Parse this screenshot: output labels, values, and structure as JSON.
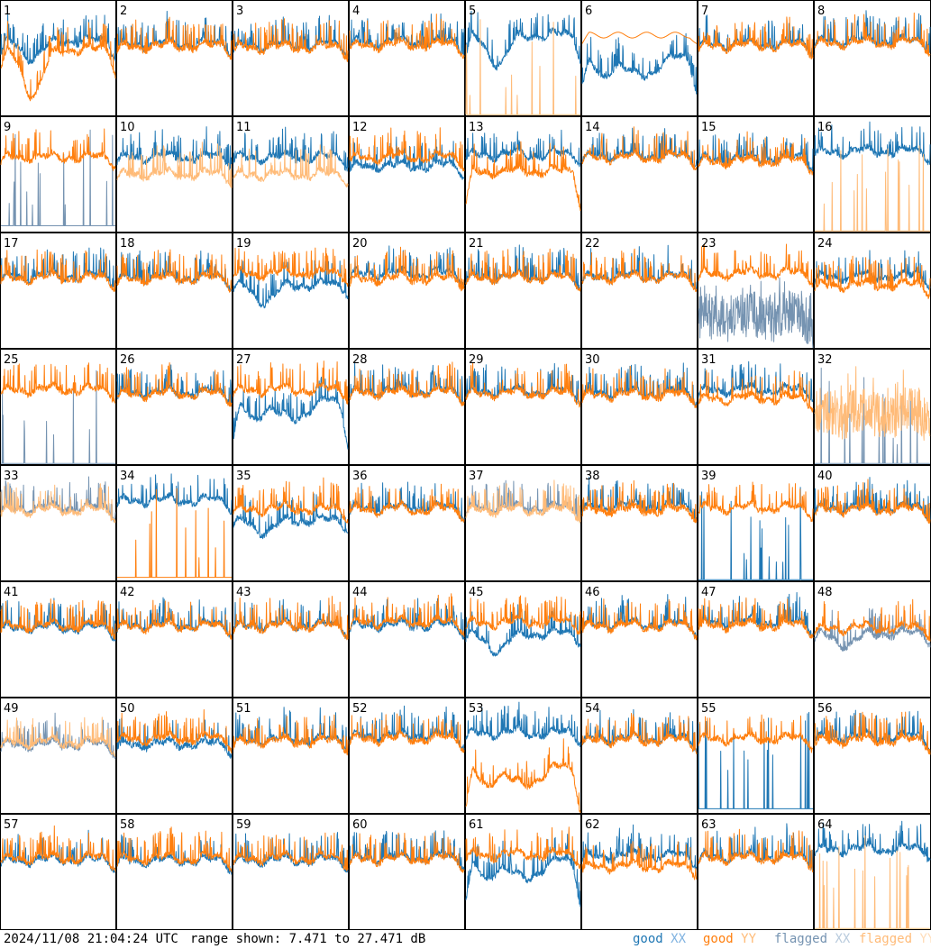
{
  "footer": {
    "timestamp": "2024/11/08 21:04:24 UTC",
    "range_text": "range shown: 7.471 to 27.471 dB"
  },
  "legend": [
    {
      "prefix": "good",
      "pol": "XX",
      "color": "#1f77b4",
      "pol_color": "#7fb2e0"
    },
    {
      "prefix": "good",
      "pol": "YY",
      "color": "#ff7f0e",
      "pol_color": "#ffbb78"
    },
    {
      "prefix": "flagged",
      "pol": "XX",
      "color": "#7593b1",
      "pol_color": "#b9cbdd"
    },
    {
      "prefix": "flagged",
      "pol": "YY",
      "color": "#ffbb78",
      "pol_color": "#ffdcb8"
    }
  ],
  "colors": {
    "good_xx": "#1f77b4",
    "good_yy": "#ff7f0e",
    "flagged_xx": "#7593b1",
    "flagged_yy": "#ffbb78",
    "frame": "#000000"
  },
  "chart_data": {
    "type": "line",
    "title": "",
    "unit": "dB",
    "ylim": [
      7.471,
      27.471
    ],
    "grid": false,
    "panels": [
      {
        "id": "1",
        "xx": {
          "s": "good",
          "level": 20.5,
          "shape": "dip",
          "depth": 3,
          "ex": 3
        },
        "yy": {
          "s": "good",
          "level": 19,
          "shape": "dip",
          "depth": 8,
          "ex": 4
        }
      },
      {
        "id": "2",
        "xx": {
          "s": "good",
          "level": 20,
          "shape": "ripple"
        },
        "yy": {
          "s": "good",
          "level": 19.6,
          "shape": "ripple"
        }
      },
      {
        "id": "3",
        "xx": {
          "s": "good",
          "level": 19.8,
          "shape": "ripple"
        },
        "yy": {
          "s": "good",
          "level": 19.4,
          "shape": "ripple"
        }
      },
      {
        "id": "4",
        "xx": {
          "s": "good",
          "level": 20.3,
          "shape": "ripple"
        },
        "yy": {
          "s": "good",
          "level": 19.8,
          "shape": "ripple"
        }
      },
      {
        "id": "5",
        "xx": {
          "s": "good",
          "level": 21.5,
          "shape": "dip",
          "depth": 5,
          "ex": 4
        },
        "yy": {
          "s": "flagged",
          "level": 7.6,
          "shape": "spikes"
        }
      },
      {
        "id": "6",
        "xx": {
          "s": "good",
          "level": 16,
          "shape": "wavy",
          "ex": 4
        },
        "yy": {
          "s": "good",
          "level": 21.5,
          "shape": "flatter"
        }
      },
      {
        "id": "7",
        "xx": {
          "s": "good",
          "level": 20,
          "shape": "ripple"
        },
        "yy": {
          "s": "good",
          "level": 19.7,
          "shape": "ripple"
        }
      },
      {
        "id": "8",
        "xx": {
          "s": "good",
          "level": 20.5,
          "shape": "edge"
        },
        "yy": {
          "s": "good",
          "level": 20.2,
          "shape": "edge"
        }
      },
      {
        "id": "9",
        "xx": {
          "s": "flagged",
          "level": 8.5,
          "shape": "spikes"
        },
        "yy": {
          "s": "good",
          "level": 20.5,
          "shape": "ripple"
        }
      },
      {
        "id": "10",
        "xx": {
          "s": "good",
          "level": 20.5,
          "shape": "ripple"
        },
        "yy": {
          "s": "flagged",
          "level": 17.5,
          "shape": "ripple"
        }
      },
      {
        "id": "11",
        "xx": {
          "s": "good",
          "level": 20.5,
          "shape": "ripple"
        },
        "yy": {
          "s": "flagged",
          "level": 17.5,
          "shape": "ripple"
        }
      },
      {
        "id": "12",
        "xx": {
          "s": "good",
          "level": 19,
          "shape": "ripple"
        },
        "yy": {
          "s": "good",
          "level": 20.5,
          "shape": "ripple"
        }
      },
      {
        "id": "13",
        "xx": {
          "s": "good",
          "level": 21,
          "shape": "ripple"
        },
        "yy": {
          "s": "good",
          "level": 18,
          "shape": "edge",
          "ex": 6
        }
      },
      {
        "id": "14",
        "xx": {
          "s": "good",
          "level": 20.8,
          "shape": "ripple"
        },
        "yy": {
          "s": "good",
          "level": 20.5,
          "shape": "ripple"
        }
      },
      {
        "id": "15",
        "xx": {
          "s": "good",
          "level": 20.3,
          "shape": "ripple"
        },
        "yy": {
          "s": "good",
          "level": 19.8,
          "shape": "ripple"
        }
      },
      {
        "id": "16",
        "xx": {
          "s": "good",
          "level": 21.5,
          "shape": "ripple"
        },
        "yy": {
          "s": "flagged",
          "level": 7.6,
          "shape": "spikes"
        }
      },
      {
        "id": "17",
        "xx": {
          "s": "good",
          "level": 20,
          "shape": "ripple"
        },
        "yy": {
          "s": "good",
          "level": 19.7,
          "shape": "ripple"
        }
      },
      {
        "id": "18",
        "xx": {
          "s": "good",
          "level": 19.8,
          "shape": "ripple"
        },
        "yy": {
          "s": "good",
          "level": 19.6,
          "shape": "ripple"
        }
      },
      {
        "id": "19",
        "xx": {
          "s": "good",
          "level": 18.5,
          "shape": "dip",
          "depth": 3
        },
        "yy": {
          "s": "good",
          "level": 20.5,
          "shape": "ripple"
        }
      },
      {
        "id": "20",
        "xx": {
          "s": "good",
          "level": 20.5,
          "shape": "ripple"
        },
        "yy": {
          "s": "good",
          "level": 19.6,
          "shape": "ripple"
        }
      },
      {
        "id": "21",
        "xx": {
          "s": "good",
          "level": 20,
          "shape": "ripple"
        },
        "yy": {
          "s": "good",
          "level": 19.8,
          "shape": "ripple"
        }
      },
      {
        "id": "22",
        "xx": {
          "s": "good",
          "level": 20,
          "shape": "ripple"
        },
        "yy": {
          "s": "good",
          "level": 19.8,
          "shape": "ripple"
        }
      },
      {
        "id": "23",
        "xx": {
          "s": "flagged",
          "level": 13,
          "shape": "noisy"
        },
        "yy": {
          "s": "good",
          "level": 20.5,
          "shape": "ripple"
        }
      },
      {
        "id": "24",
        "xx": {
          "s": "good",
          "level": 20,
          "shape": "ripple"
        },
        "yy": {
          "s": "good",
          "level": 18.5,
          "shape": "ripple"
        }
      },
      {
        "id": "25",
        "xx": {
          "s": "flagged",
          "level": 7.6,
          "shape": "spikes"
        },
        "yy": {
          "s": "good",
          "level": 20.5,
          "shape": "ripple"
        }
      },
      {
        "id": "26",
        "xx": {
          "s": "good",
          "level": 20,
          "shape": "ripple"
        },
        "yy": {
          "s": "good",
          "level": 19.8,
          "shape": "ripple"
        }
      },
      {
        "id": "27",
        "xx": {
          "s": "good",
          "level": 17,
          "shape": "wavy",
          "ex": 6
        },
        "yy": {
          "s": "good",
          "level": 20.5,
          "shape": "ripple"
        }
      },
      {
        "id": "28",
        "xx": {
          "s": "good",
          "level": 20.3,
          "shape": "ripple"
        },
        "yy": {
          "s": "good",
          "level": 20,
          "shape": "ripple"
        }
      },
      {
        "id": "29",
        "xx": {
          "s": "good",
          "level": 20.2,
          "shape": "ripple"
        },
        "yy": {
          "s": "good",
          "level": 19.9,
          "shape": "ripple"
        }
      },
      {
        "id": "30",
        "xx": {
          "s": "good",
          "level": 20,
          "shape": "ripple"
        },
        "yy": {
          "s": "good",
          "level": 19.6,
          "shape": "ripple"
        }
      },
      {
        "id": "31",
        "xx": {
          "s": "good",
          "level": 20.5,
          "shape": "ripple"
        },
        "yy": {
          "s": "good",
          "level": 19,
          "shape": "ripple"
        }
      },
      {
        "id": "32",
        "xx": {
          "s": "flagged",
          "level": 7.6,
          "shape": "spikes"
        },
        "yy": {
          "s": "flagged",
          "level": 16.5,
          "shape": "noisy"
        }
      },
      {
        "id": "33",
        "xx": {
          "s": "flagged",
          "level": 20.2,
          "shape": "ripple"
        },
        "yy": {
          "s": "flagged",
          "level": 19.8,
          "shape": "ripple"
        }
      },
      {
        "id": "34",
        "xx": {
          "s": "good",
          "level": 21.5,
          "shape": "ripple"
        },
        "yy": {
          "s": "good",
          "level": 8,
          "shape": "spikes"
        }
      },
      {
        "id": "35",
        "xx": {
          "s": "good",
          "level": 18,
          "shape": "dip",
          "depth": 2
        },
        "yy": {
          "s": "good",
          "level": 20,
          "shape": "ripple"
        }
      },
      {
        "id": "36",
        "xx": {
          "s": "good",
          "level": 20.2,
          "shape": "ripple"
        },
        "yy": {
          "s": "good",
          "level": 19.9,
          "shape": "ripple"
        }
      },
      {
        "id": "37",
        "xx": {
          "s": "flagged",
          "level": 20.2,
          "shape": "ripple"
        },
        "yy": {
          "s": "flagged",
          "level": 19.8,
          "shape": "ripple"
        }
      },
      {
        "id": "38",
        "xx": {
          "s": "good",
          "level": 20.5,
          "shape": "ripple"
        },
        "yy": {
          "s": "good",
          "level": 19.8,
          "shape": "ripple"
        }
      },
      {
        "id": "39",
        "xx": {
          "s": "good",
          "level": 7.6,
          "shape": "spikes"
        },
        "yy": {
          "s": "good",
          "level": 20.2,
          "shape": "ripple"
        }
      },
      {
        "id": "40",
        "xx": {
          "s": "good",
          "level": 20.2,
          "shape": "ripple"
        },
        "yy": {
          "s": "good",
          "level": 19.9,
          "shape": "ripple"
        }
      },
      {
        "id": "41",
        "xx": {
          "s": "good",
          "level": 19.6,
          "shape": "ripple"
        },
        "yy": {
          "s": "good",
          "level": 19.9,
          "shape": "ripple"
        }
      },
      {
        "id": "42",
        "xx": {
          "s": "good",
          "level": 20,
          "shape": "ripple"
        },
        "yy": {
          "s": "good",
          "level": 19.8,
          "shape": "ripple"
        }
      },
      {
        "id": "43",
        "xx": {
          "s": "good",
          "level": 20,
          "shape": "ripple"
        },
        "yy": {
          "s": "good",
          "level": 19.8,
          "shape": "ripple"
        }
      },
      {
        "id": "44",
        "xx": {
          "s": "good",
          "level": 20,
          "shape": "edge"
        },
        "yy": {
          "s": "good",
          "level": 20.5,
          "shape": "edge"
        }
      },
      {
        "id": "45",
        "xx": {
          "s": "good",
          "level": 18.5,
          "shape": "dip",
          "depth": 3
        },
        "yy": {
          "s": "good",
          "level": 20.5,
          "shape": "ripple"
        }
      },
      {
        "id": "46",
        "xx": {
          "s": "good",
          "level": 20.2,
          "shape": "ripple"
        },
        "yy": {
          "s": "good",
          "level": 19.9,
          "shape": "ripple"
        }
      },
      {
        "id": "47",
        "xx": {
          "s": "good",
          "level": 20.5,
          "shape": "edge"
        },
        "yy": {
          "s": "good",
          "level": 20,
          "shape": "edge"
        }
      },
      {
        "id": "48",
        "xx": {
          "s": "flagged",
          "level": 18.5,
          "shape": "dip",
          "depth": 2
        },
        "yy": {
          "s": "good",
          "level": 19.5,
          "shape": "ripple"
        }
      },
      {
        "id": "49",
        "xx": {
          "s": "flagged",
          "level": 19.5,
          "shape": "ripple"
        },
        "yy": {
          "s": "flagged",
          "level": 19.8,
          "shape": "ripple"
        }
      },
      {
        "id": "50",
        "xx": {
          "s": "good",
          "level": 19.5,
          "shape": "ripple"
        },
        "yy": {
          "s": "good",
          "level": 20.5,
          "shape": "ripple"
        }
      },
      {
        "id": "51",
        "xx": {
          "s": "good",
          "level": 20.3,
          "shape": "ripple"
        },
        "yy": {
          "s": "good",
          "level": 20,
          "shape": "ripple"
        }
      },
      {
        "id": "52",
        "xx": {
          "s": "good",
          "level": 21,
          "shape": "ripple"
        },
        "yy": {
          "s": "good",
          "level": 20.5,
          "shape": "edge"
        }
      },
      {
        "id": "53",
        "xx": {
          "s": "good",
          "level": 21.5,
          "shape": "ripple"
        },
        "yy": {
          "s": "good",
          "level": 14,
          "shape": "wavy",
          "ex": 6
        }
      },
      {
        "id": "54",
        "xx": {
          "s": "good",
          "level": 20.5,
          "shape": "ripple"
        },
        "yy": {
          "s": "good",
          "level": 20.2,
          "shape": "ripple"
        }
      },
      {
        "id": "55",
        "xx": {
          "s": "good",
          "level": 8.2,
          "shape": "spikes"
        },
        "yy": {
          "s": "good",
          "level": 20.5,
          "shape": "ripple"
        }
      },
      {
        "id": "56",
        "xx": {
          "s": "good",
          "level": 20.8,
          "shape": "ripple"
        },
        "yy": {
          "s": "good",
          "level": 20.2,
          "shape": "edge"
        }
      },
      {
        "id": "57",
        "xx": {
          "s": "good",
          "level": 19.6,
          "shape": "ripple"
        },
        "yy": {
          "s": "good",
          "level": 19.9,
          "shape": "ripple"
        }
      },
      {
        "id": "58",
        "xx": {
          "s": "good",
          "level": 19.5,
          "shape": "ripple"
        },
        "yy": {
          "s": "good",
          "level": 19.9,
          "shape": "ripple"
        }
      },
      {
        "id": "59",
        "xx": {
          "s": "good",
          "level": 19.6,
          "shape": "ripple"
        },
        "yy": {
          "s": "good",
          "level": 19.9,
          "shape": "ripple"
        }
      },
      {
        "id": "60",
        "xx": {
          "s": "good",
          "level": 20,
          "shape": "ripple"
        },
        "yy": {
          "s": "good",
          "level": 19.8,
          "shape": "ripple"
        }
      },
      {
        "id": "61",
        "xx": {
          "s": "good",
          "level": 18,
          "shape": "wavy",
          "ex": 6
        },
        "yy": {
          "s": "good",
          "level": 20.5,
          "shape": "ripple"
        }
      },
      {
        "id": "62",
        "xx": {
          "s": "good",
          "level": 20.3,
          "shape": "ripple"
        },
        "yy": {
          "s": "good",
          "level": 18.5,
          "shape": "ripple"
        }
      },
      {
        "id": "63",
        "xx": {
          "s": "good",
          "level": 20.2,
          "shape": "ripple"
        },
        "yy": {
          "s": "good",
          "level": 19.9,
          "shape": "ripple"
        }
      },
      {
        "id": "64",
        "xx": {
          "s": "good",
          "level": 21.5,
          "shape": "ripple"
        },
        "yy": {
          "s": "flagged",
          "level": 7.6,
          "shape": "spikes"
        }
      }
    ]
  }
}
